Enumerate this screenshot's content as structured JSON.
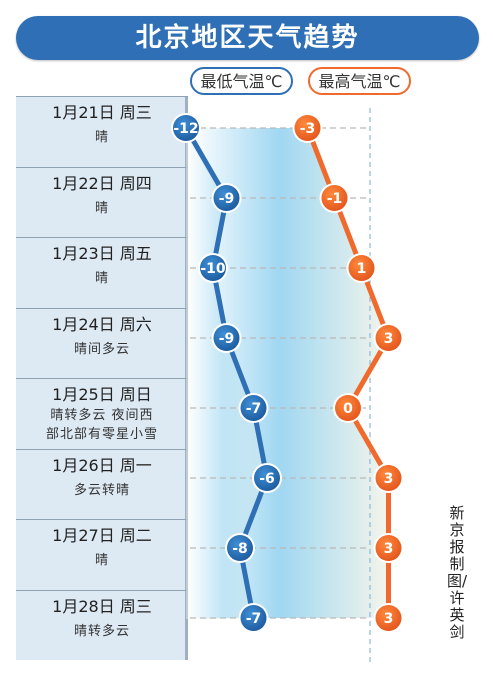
{
  "header": {
    "title": "北京地区天气趋势"
  },
  "legend": {
    "low_label": "最低气温℃",
    "high_label": "最高气温℃"
  },
  "colors": {
    "low": "#2f6fb5",
    "high": "#ef6a2c",
    "header": "#2f6fb5"
  },
  "days": [
    {
      "date": "1月21日 周三",
      "weather": [
        "晴"
      ]
    },
    {
      "date": "1月22日 周四",
      "weather": [
        "晴"
      ]
    },
    {
      "date": "1月23日 周五",
      "weather": [
        "晴"
      ]
    },
    {
      "date": "1月24日 周六",
      "weather": [
        "晴间多云"
      ]
    },
    {
      "date": "1月25日 周日",
      "weather": [
        "晴转多云 夜间西",
        "部北部有零星小雪"
      ]
    },
    {
      "date": "1月26日 周一",
      "weather": [
        "多云转晴"
      ]
    },
    {
      "date": "1月27日 周二",
      "weather": [
        "晴"
      ]
    },
    {
      "date": "1月28日 周三",
      "weather": [
        "晴转多云"
      ]
    }
  ],
  "chart_data": {
    "type": "line",
    "x": [
      "1月21日",
      "1月22日",
      "1月23日",
      "1月24日",
      "1月25日",
      "1月26日",
      "1月27日",
      "1月28日"
    ],
    "series": [
      {
        "name": "最低气温℃",
        "values": [
          -12,
          -9,
          -10,
          -9,
          -7,
          -6,
          -8,
          -7
        ],
        "color": "#2f6fb5"
      },
      {
        "name": "最高气温℃",
        "values": [
          -3,
          -1,
          1,
          3,
          0,
          3,
          3,
          3
        ],
        "color": "#ef6a2c"
      }
    ],
    "title": "北京地区天气趋势",
    "data_labels": true
  },
  "credit": "新京报制图/许英剑"
}
